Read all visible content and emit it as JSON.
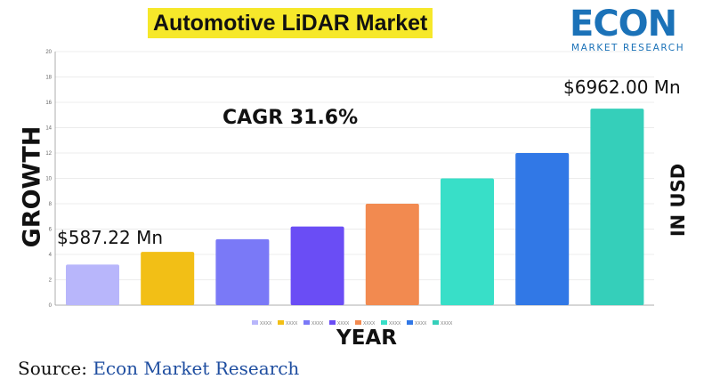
{
  "title": "Automotive LiDAR Market",
  "logo": {
    "word": "ECON",
    "subtitle": "MARKET RESEARCH",
    "color": "#1b72b8"
  },
  "annotations": {
    "cagr": "CAGR 31.6%",
    "first_value": "$587.22 Mn",
    "last_value": "$6962.00 Mn"
  },
  "source": {
    "prefix": "Source: ",
    "name": "Econ Market Research"
  },
  "chart_data": {
    "type": "bar",
    "xlabel": "YEAR",
    "ylabel": "GROWTH",
    "ylabel_right": "IN USD",
    "ylim": [
      0,
      20
    ],
    "yticks": [
      0,
      2,
      4,
      6,
      8,
      10,
      12,
      14,
      16,
      18,
      20
    ],
    "grid": true,
    "legend_position": "bottom",
    "series": [
      {
        "name": "XXXX",
        "value": 3.2,
        "color": "#b8b6fb"
      },
      {
        "name": "XXXX",
        "value": 4.2,
        "color": "#f2bf16"
      },
      {
        "name": "XXXX",
        "value": 5.2,
        "color": "#7a79f7"
      },
      {
        "name": "XXXX",
        "value": 6.2,
        "color": "#6a4df5"
      },
      {
        "name": "XXXX",
        "value": 8.0,
        "color": "#f28a50"
      },
      {
        "name": "XXXX",
        "value": 10.0,
        "color": "#38dfc8"
      },
      {
        "name": "XXXX",
        "value": 12.0,
        "color": "#3178e6"
      },
      {
        "name": "XXXX",
        "value": 15.5,
        "color": "#35cfba"
      }
    ]
  }
}
